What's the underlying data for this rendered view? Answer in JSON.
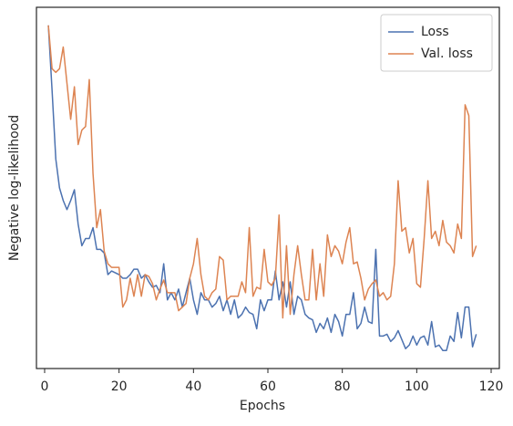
{
  "chart_data": {
    "type": "line",
    "xlabel": "Epochs",
    "ylabel": "Negative log-likelihood",
    "x": [
      1,
      2,
      3,
      4,
      5,
      6,
      7,
      8,
      9,
      10,
      11,
      12,
      13,
      14,
      15,
      16,
      17,
      18,
      19,
      20,
      21,
      22,
      23,
      24,
      25,
      26,
      27,
      28,
      29,
      30,
      31,
      32,
      33,
      34,
      35,
      36,
      37,
      38,
      39,
      40,
      41,
      42,
      43,
      44,
      45,
      46,
      47,
      48,
      49,
      50,
      51,
      52,
      53,
      54,
      55,
      56,
      57,
      58,
      59,
      60,
      61,
      62,
      63,
      64,
      65,
      66,
      67,
      68,
      69,
      70,
      71,
      72,
      73,
      74,
      75,
      76,
      77,
      78,
      79,
      80,
      81,
      82,
      83,
      84,
      85,
      86,
      87,
      88,
      89,
      90,
      91,
      92,
      93,
      94,
      95,
      96,
      97,
      98,
      99,
      100,
      101,
      102,
      103,
      104,
      105,
      106,
      107,
      108,
      109,
      110,
      111,
      112,
      113,
      114,
      115,
      116
    ],
    "series": [
      {
        "name": "Loss",
        "color": "#4c72b0",
        "values": [
          95,
          77,
          58,
          50,
          46.5,
          44,
          46.5,
          49.5,
          40,
          34,
          36,
          36,
          39,
          33,
          33,
          32,
          26,
          27,
          26.5,
          26,
          25,
          25,
          26,
          27.5,
          27.5,
          25,
          26,
          24,
          22.5,
          23,
          21,
          29,
          19,
          21,
          19,
          22,
          17,
          21,
          25,
          19,
          15,
          21,
          19,
          19,
          17,
          18,
          20,
          16,
          19,
          15,
          19,
          14,
          15,
          17,
          15.5,
          15,
          11,
          19,
          16,
          19,
          19,
          27,
          19,
          24,
          17,
          24,
          15,
          20,
          19,
          15,
          14,
          13.5,
          10,
          12.5,
          11,
          14,
          10,
          15,
          13,
          9,
          15,
          15,
          21,
          11,
          12.5,
          17,
          13,
          12.5,
          33,
          9,
          9,
          9.5,
          7.5,
          8.5,
          10.5,
          8,
          5.5,
          6.5,
          9,
          6.5,
          8.5,
          9,
          6.5,
          13,
          6,
          6.5,
          5,
          5,
          9,
          7.5,
          15.5,
          8.5,
          17,
          17,
          6,
          9.5
        ]
      },
      {
        "name": "Val. loss",
        "color": "#dd8452",
        "values": [
          95,
          83,
          82,
          83,
          89,
          79,
          69,
          78,
          62,
          66,
          67,
          80,
          54,
          39,
          44,
          32.5,
          29,
          28,
          28,
          28,
          17,
          19,
          25,
          20,
          26,
          20,
          26,
          25.5,
          23.5,
          19,
          22,
          24.5,
          21,
          21,
          21,
          16,
          17,
          18,
          25,
          29,
          36,
          26,
          20,
          19,
          21,
          22,
          31,
          30,
          19,
          20,
          20,
          20,
          24,
          21,
          39,
          20,
          22.5,
          22,
          33,
          24,
          23,
          25,
          42.5,
          14,
          34,
          15,
          26,
          34,
          26,
          19,
          19,
          33,
          19,
          29,
          20,
          37,
          31,
          34,
          32.5,
          29,
          35,
          39,
          29,
          29.5,
          25,
          19,
          22,
          23.5,
          24.5,
          20,
          21,
          19,
          20,
          29,
          52,
          38,
          39,
          32,
          36,
          23.5,
          22.5,
          36,
          52,
          36,
          38,
          34,
          41,
          35,
          34,
          32,
          40,
          36,
          73,
          70,
          31,
          34
        ]
      }
    ],
    "xlim": [
      -2.2,
      122.2
    ],
    "xticks": [
      0,
      20,
      40,
      60,
      80,
      100,
      120
    ],
    "ylim": [
      0,
      100
    ],
    "legend": "upper right"
  }
}
